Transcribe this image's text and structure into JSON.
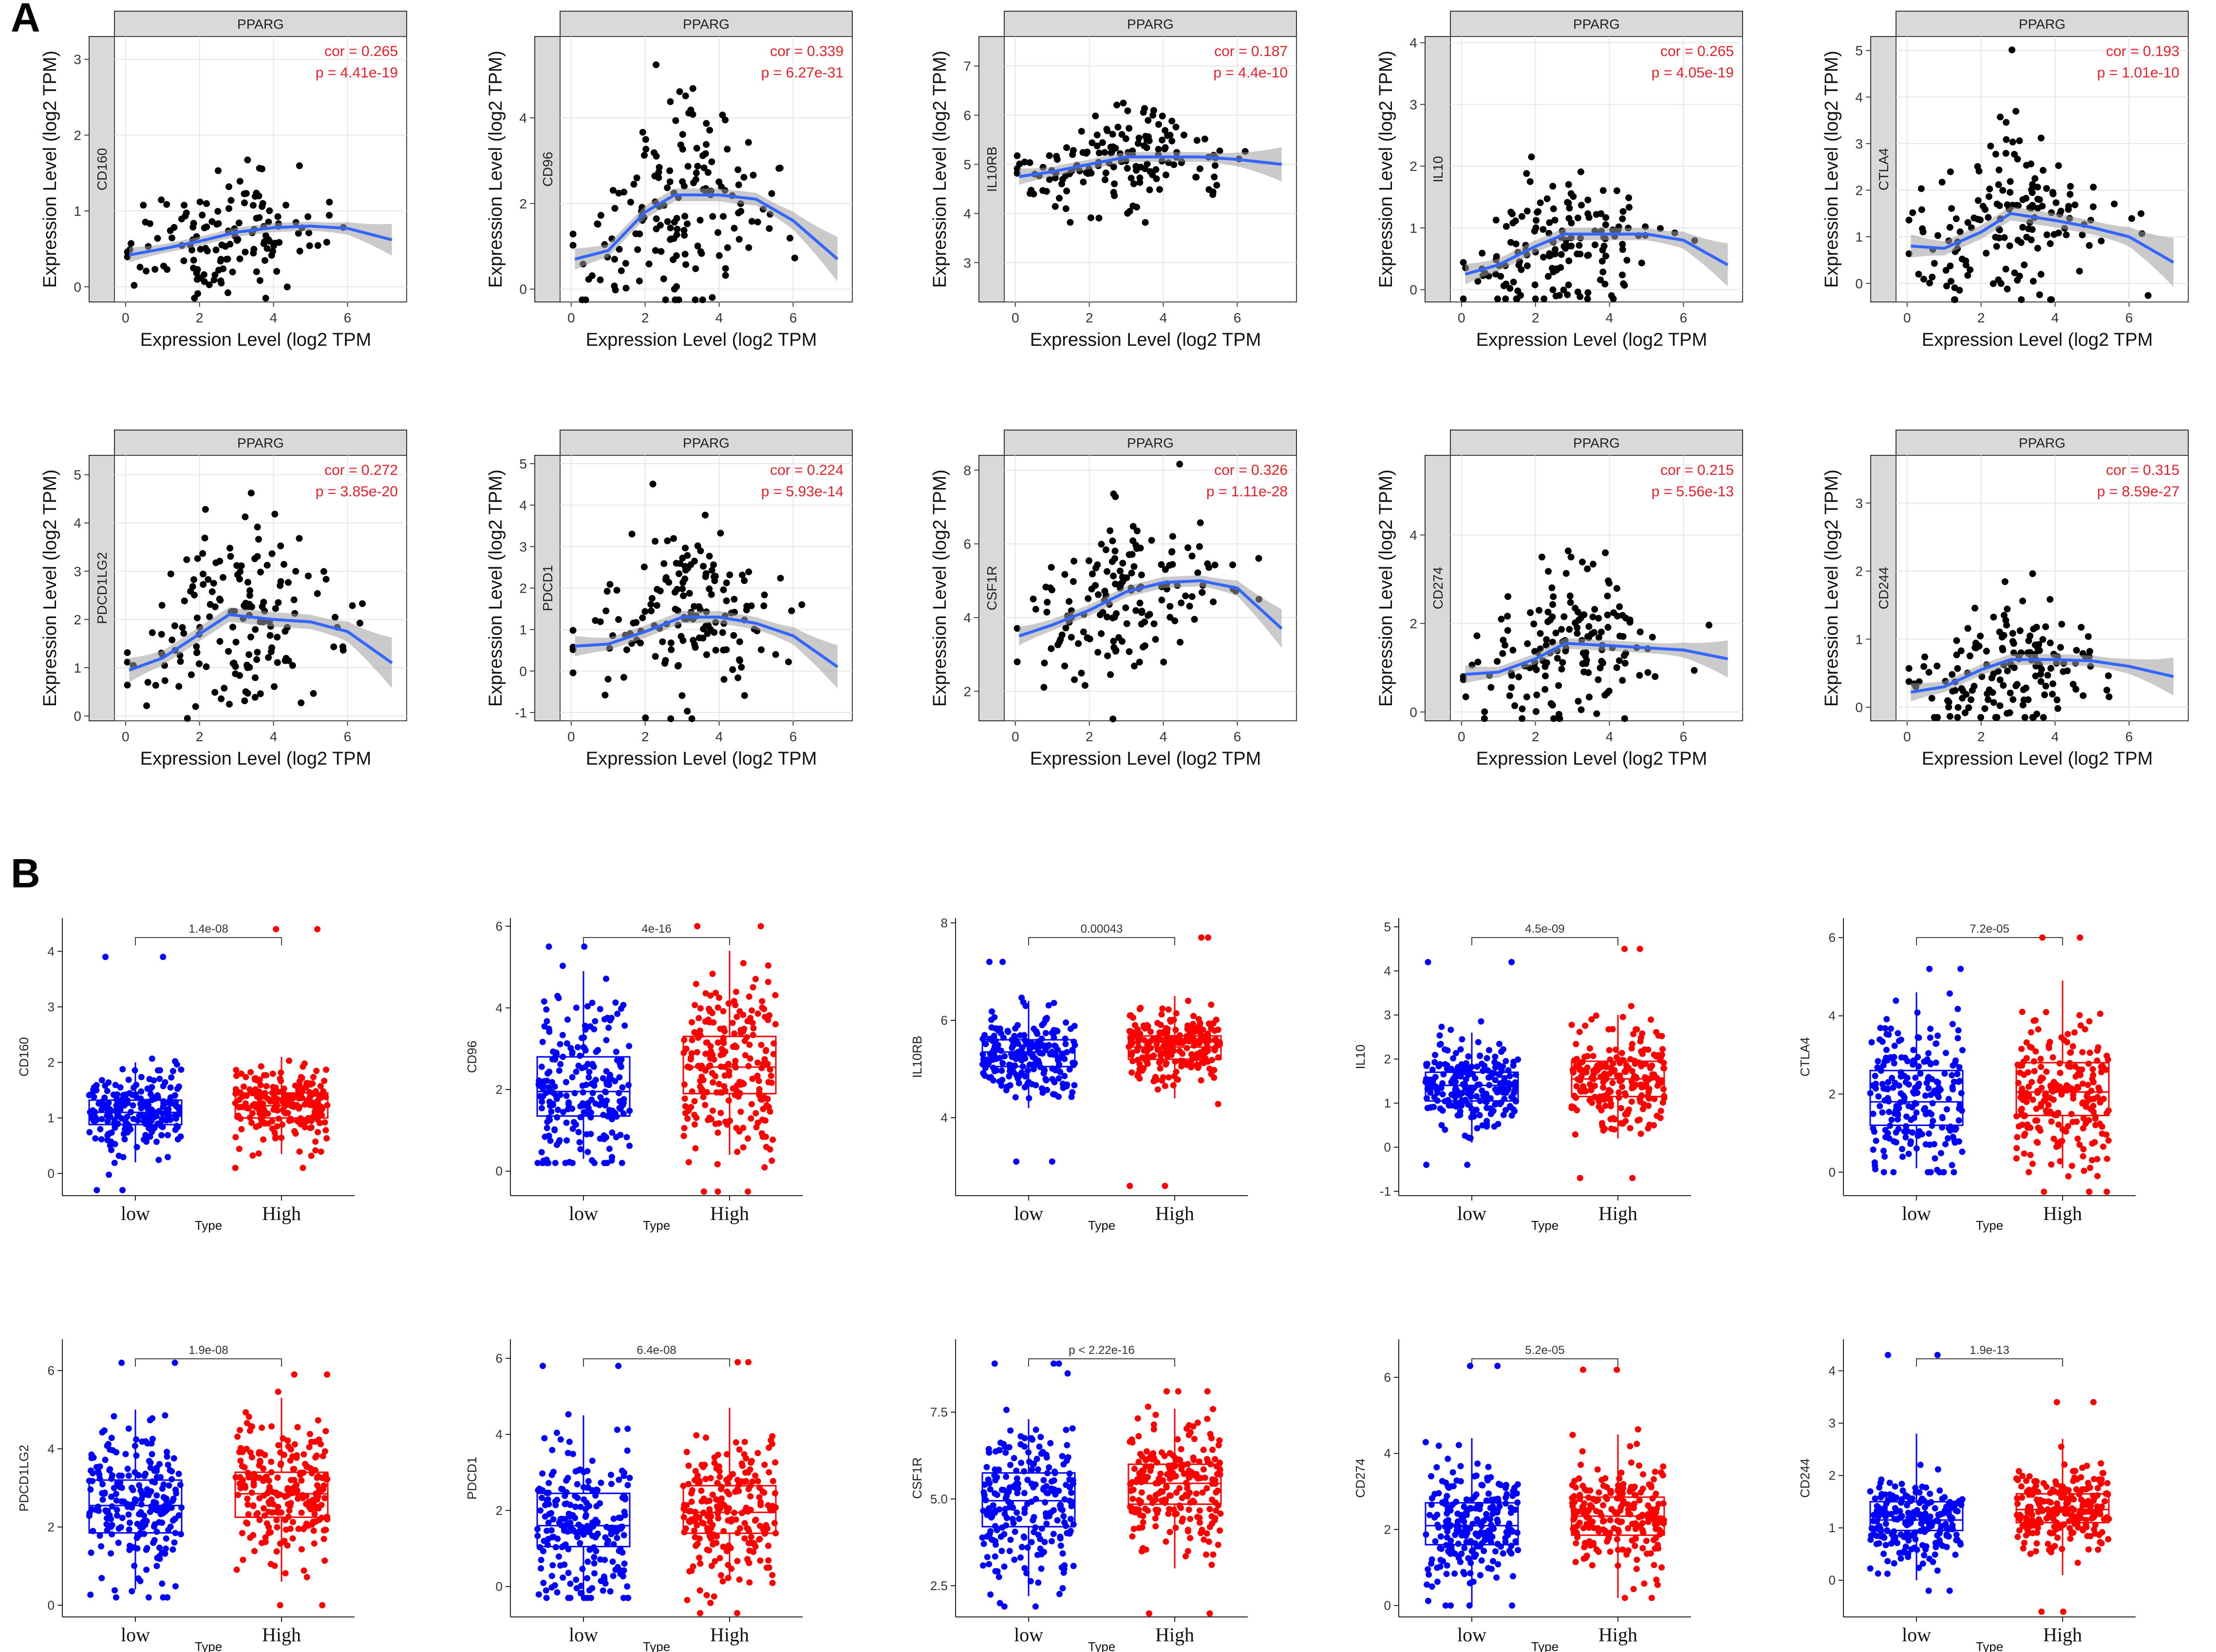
{
  "panels": {
    "a": "A",
    "b": "B"
  },
  "chart_data": [
    {
      "type": "scatter",
      "panel": "A",
      "strip_label": "PPARG",
      "xlabel": "Expression Level (log2 TPM",
      "ylabel": "Expression Level (log2 TPM)",
      "xlim": [
        -0.3,
        7.6
      ],
      "xticks": [
        0,
        2,
        4,
        6
      ],
      "plots": [
        {
          "gene": "CD160",
          "cor": "cor = 0.265",
          "p": "p = 4.41e-19",
          "ylim": [
            -0.2,
            3.3
          ],
          "yticks": [
            0,
            1,
            2,
            3
          ],
          "fit": [
            [
              0.1,
              0.42
            ],
            [
              1,
              0.5
            ],
            [
              2,
              0.6
            ],
            [
              3,
              0.72
            ],
            [
              4,
              0.78
            ],
            [
              5,
              0.8
            ],
            [
              6,
              0.77
            ],
            [
              7.2,
              0.62
            ]
          ],
          "band": 0.06,
          "center": [
            2.5,
            0.6
          ],
          "spread": [
            1.3,
            0.4
          ],
          "n": 140
        },
        {
          "gene": "CD96",
          "cor": "cor = 0.339",
          "p": "p = 6.27e-31",
          "ylim": [
            -0.3,
            5.9
          ],
          "yticks": [
            0,
            2,
            4
          ],
          "fit": [
            [
              0.1,
              0.7
            ],
            [
              1,
              0.9
            ],
            [
              2,
              1.8
            ],
            [
              2.8,
              2.2
            ],
            [
              4,
              2.2
            ],
            [
              5,
              2.1
            ],
            [
              6,
              1.6
            ],
            [
              7.2,
              0.7
            ]
          ],
          "band": 0.15,
          "center": [
            3,
            2.2
          ],
          "spread": [
            1.3,
            1.2
          ],
          "n": 160
        },
        {
          "gene": "IL10RB",
          "cor": "cor = 0.187",
          "p": "p = 4.4e-10",
          "ylim": [
            2.2,
            7.6
          ],
          "yticks": [
            3,
            4,
            5,
            6,
            7
          ],
          "fit": [
            [
              0.1,
              4.75
            ],
            [
              1,
              4.85
            ],
            [
              2,
              5.0
            ],
            [
              3,
              5.15
            ],
            [
              4,
              5.15
            ],
            [
              5,
              5.15
            ],
            [
              6,
              5.1
            ],
            [
              7.2,
              5.0
            ]
          ],
          "band": 0.1,
          "center": [
            2.8,
            5.1
          ],
          "spread": [
            1.4,
            0.5
          ],
          "n": 160
        },
        {
          "gene": "IL10",
          "cor": "cor = 0.265",
          "p": "p = 4.05e-19",
          "ylim": [
            -0.2,
            4.1
          ],
          "yticks": [
            0,
            1,
            2,
            3,
            4
          ],
          "fit": [
            [
              0.1,
              0.25
            ],
            [
              1,
              0.4
            ],
            [
              2,
              0.7
            ],
            [
              2.8,
              0.9
            ],
            [
              4,
              0.9
            ],
            [
              5,
              0.9
            ],
            [
              6,
              0.8
            ],
            [
              7.2,
              0.4
            ]
          ],
          "band": 0.1,
          "center": [
            2.8,
            0.9
          ],
          "spread": [
            1.3,
            0.6
          ],
          "n": 160
        },
        {
          "gene": "CTLA4",
          "cor": "cor = 0.193",
          "p": "p = 1.01e-10",
          "ylim": [
            -0.4,
            5.3
          ],
          "yticks": [
            0,
            1,
            2,
            3,
            4,
            5
          ],
          "fit": [
            [
              0.1,
              0.8
            ],
            [
              1,
              0.75
            ],
            [
              2,
              1.1
            ],
            [
              2.8,
              1.5
            ],
            [
              4,
              1.35
            ],
            [
              5,
              1.2
            ],
            [
              6,
              1.0
            ],
            [
              7.2,
              0.45
            ]
          ],
          "band": 0.15,
          "center": [
            2.8,
            1.4
          ],
          "spread": [
            1.3,
            0.9
          ],
          "n": 160
        },
        {
          "gene": "PDCD1LG2",
          "cor": "cor = 0.272",
          "p": "p = 3.85e-20",
          "ylim": [
            -0.1,
            5.4
          ],
          "yticks": [
            0,
            1,
            2,
            3,
            4,
            5
          ],
          "fit": [
            [
              0.1,
              0.95
            ],
            [
              1,
              1.2
            ],
            [
              2,
              1.7
            ],
            [
              2.8,
              2.1
            ],
            [
              4,
              2.0
            ],
            [
              5,
              1.95
            ],
            [
              6,
              1.75
            ],
            [
              7.2,
              1.1
            ]
          ],
          "band": 0.15,
          "center": [
            2.8,
            2.0
          ],
          "spread": [
            1.3,
            1.0
          ],
          "n": 160
        },
        {
          "gene": "PDCD1",
          "cor": "cor = 0.224",
          "p": "p = 5.93e-14",
          "ylim": [
            -1.2,
            5.2
          ],
          "yticks": [
            -1,
            0,
            1,
            2,
            3,
            4,
            5
          ],
          "fit": [
            [
              0.1,
              0.6
            ],
            [
              1,
              0.65
            ],
            [
              2,
              0.95
            ],
            [
              3,
              1.3
            ],
            [
              4,
              1.3
            ],
            [
              5,
              1.15
            ],
            [
              6,
              0.85
            ],
            [
              7.2,
              0.1
            ]
          ],
          "band": 0.15,
          "center": [
            3,
            1.2
          ],
          "spread": [
            1.3,
            1.0
          ],
          "n": 160
        },
        {
          "gene": "CSF1R",
          "cor": "cor = 0.326",
          "p": "p = 1.11e-28",
          "ylim": [
            1.2,
            8.4
          ],
          "yticks": [
            2,
            4,
            6,
            8
          ],
          "fit": [
            [
              0.1,
              3.5
            ],
            [
              1,
              3.8
            ],
            [
              2,
              4.2
            ],
            [
              3,
              4.7
            ],
            [
              4,
              4.95
            ],
            [
              5,
              5.0
            ],
            [
              6,
              4.8
            ],
            [
              7.2,
              3.7
            ]
          ],
          "band": 0.15,
          "center": [
            3,
            4.6
          ],
          "spread": [
            1.4,
            1.1
          ],
          "n": 160
        },
        {
          "gene": "CD274",
          "cor": "cor = 0.215",
          "p": "p = 5.56e-13",
          "ylim": [
            -0.2,
            5.8
          ],
          "yticks": [
            0,
            2,
            4
          ],
          "fit": [
            [
              0.1,
              0.85
            ],
            [
              1,
              0.9
            ],
            [
              2,
              1.2
            ],
            [
              2.8,
              1.55
            ],
            [
              4,
              1.5
            ],
            [
              5,
              1.45
            ],
            [
              6,
              1.4
            ],
            [
              7.2,
              1.2
            ]
          ],
          "band": 0.12,
          "center": [
            2.8,
            1.4
          ],
          "spread": [
            1.3,
            0.9
          ],
          "n": 160
        },
        {
          "gene": "CD244",
          "cor": "cor = 0.315",
          "p": "p = 8.59e-27",
          "ylim": [
            -0.2,
            3.7
          ],
          "yticks": [
            0,
            1,
            2,
            3
          ],
          "fit": [
            [
              0.1,
              0.22
            ],
            [
              1,
              0.3
            ],
            [
              2,
              0.55
            ],
            [
              2.8,
              0.7
            ],
            [
              4,
              0.7
            ],
            [
              5,
              0.68
            ],
            [
              6,
              0.6
            ],
            [
              7.2,
              0.45
            ]
          ],
          "band": 0.08,
          "center": [
            2.8,
            0.6
          ],
          "spread": [
            1.3,
            0.45
          ],
          "n": 160
        }
      ]
    },
    {
      "type": "box",
      "panel": "B",
      "xlabel": "Type",
      "categories": [
        "low",
        "High"
      ],
      "colors": [
        "#0000ff",
        "#ff0000"
      ],
      "plots": [
        {
          "gene": "CD160",
          "pval": "1.4e-08",
          "ylim": [
            -0.4,
            4.6
          ],
          "yticks": [
            0,
            1,
            2,
            3,
            4
          ],
          "low": [
            0.88,
            1.1,
            1.32
          ],
          "high": [
            1.0,
            1.22,
            1.45
          ],
          "lw": [
            0.2,
            2.0
          ],
          "hw": [
            0.35,
            2.1
          ],
          "lrange": [
            -0.3,
            3.9
          ],
          "hrange": [
            0.1,
            4.4
          ]
        },
        {
          "gene": "CD96",
          "pval": "4e-16",
          "ylim": [
            -0.6,
            6.2
          ],
          "yticks": [
            0,
            2,
            4,
            6
          ],
          "low": [
            1.35,
            1.95,
            2.8
          ],
          "high": [
            1.9,
            2.55,
            3.3
          ],
          "lw": [
            0.3,
            4.9
          ],
          "hw": [
            0.4,
            5.4
          ],
          "lrange": [
            0.2,
            5.5
          ],
          "hrange": [
            -0.5,
            6.0
          ]
        },
        {
          "gene": "IL10RB",
          "pval": "0.00043",
          "ylim": [
            2.4,
            8.1
          ],
          "yticks": [
            4,
            6,
            8
          ],
          "low": [
            5.05,
            5.35,
            5.6
          ],
          "high": [
            5.2,
            5.45,
            5.68
          ],
          "lw": [
            4.2,
            6.4
          ],
          "hw": [
            4.4,
            6.5
          ],
          "lrange": [
            3.1,
            7.2
          ],
          "hrange": [
            2.6,
            7.7
          ]
        },
        {
          "gene": "IL10",
          "pval": "4.5e-09",
          "ylim": [
            -1.1,
            5.2
          ],
          "yticks": [
            -1,
            0,
            1,
            2,
            3,
            4,
            5
          ],
          "low": [
            1.05,
            1.4,
            1.7
          ],
          "high": [
            1.15,
            1.55,
            1.95
          ],
          "lw": [
            0.1,
            2.6
          ],
          "hw": [
            0.2,
            3.0
          ],
          "lrange": [
            -0.4,
            4.2
          ],
          "hrange": [
            -0.7,
            4.5
          ]
        },
        {
          "gene": "CTLA4",
          "pval": "7.2e-05",
          "ylim": [
            -0.6,
            6.5
          ],
          "yticks": [
            0,
            2,
            4,
            6
          ],
          "low": [
            1.2,
            1.8,
            2.6
          ],
          "high": [
            1.45,
            2.05,
            2.8
          ],
          "lw": [
            0.1,
            4.6
          ],
          "hw": [
            0.1,
            4.9
          ],
          "lrange": [
            0.0,
            5.2
          ],
          "hrange": [
            -0.5,
            6.0
          ]
        },
        {
          "gene": "PDCD1LG2",
          "pval": "1.9e-08",
          "ylim": [
            -0.3,
            6.8
          ],
          "yticks": [
            0,
            2,
            4,
            6
          ],
          "low": [
            1.85,
            2.55,
            3.2
          ],
          "high": [
            2.25,
            2.85,
            3.4
          ],
          "lw": [
            0.4,
            5.0
          ],
          "hw": [
            0.6,
            5.3
          ],
          "lrange": [
            0.2,
            6.2
          ],
          "hrange": [
            0.0,
            5.9
          ]
        },
        {
          "gene": "PDCD1",
          "pval": "6.4e-08",
          "ylim": [
            -0.8,
            6.5
          ],
          "yticks": [
            0,
            2,
            4,
            6
          ],
          "low": [
            1.05,
            1.6,
            2.45
          ],
          "high": [
            1.4,
            1.95,
            2.65
          ],
          "lw": [
            -0.3,
            4.5
          ],
          "hw": [
            0.2,
            4.7
          ],
          "lrange": [
            -0.3,
            5.8
          ],
          "hrange": [
            -0.7,
            5.9
          ]
        },
        {
          "gene": "CSF1R",
          "pval": "p < 2.22e-16",
          "ylim": [
            1.6,
            9.6
          ],
          "yticks": [
            2.5,
            5.0,
            7.5
          ],
          "low": [
            4.2,
            4.95,
            5.75
          ],
          "high": [
            4.85,
            5.45,
            6.0
          ],
          "lw": [
            2.2,
            7.3
          ],
          "hw": [
            3.0,
            7.6
          ],
          "lrange": [
            1.9,
            8.9
          ],
          "hrange": [
            1.7,
            8.1
          ]
        },
        {
          "gene": "CD274",
          "pval": "5.2e-05",
          "ylim": [
            -0.3,
            7.0
          ],
          "yticks": [
            0,
            2,
            4,
            6
          ],
          "low": [
            1.6,
            2.1,
            2.7
          ],
          "high": [
            1.85,
            2.35,
            2.85
          ],
          "lw": [
            0.0,
            4.4
          ],
          "hw": [
            0.2,
            4.5
          ],
          "lrange": [
            0.0,
            6.3
          ],
          "hrange": [
            0.2,
            6.2
          ]
        },
        {
          "gene": "CD244",
          "pval": "1.9e-13",
          "ylim": [
            -0.7,
            4.6
          ],
          "yticks": [
            0,
            1,
            2,
            3,
            4
          ],
          "low": [
            0.95,
            1.15,
            1.5
          ],
          "high": [
            1.1,
            1.35,
            1.65
          ],
          "lw": [
            0.0,
            2.8
          ],
          "hw": [
            0.1,
            2.7
          ],
          "lrange": [
            -0.2,
            4.3
          ],
          "hrange": [
            -0.6,
            3.4
          ]
        }
      ]
    }
  ]
}
